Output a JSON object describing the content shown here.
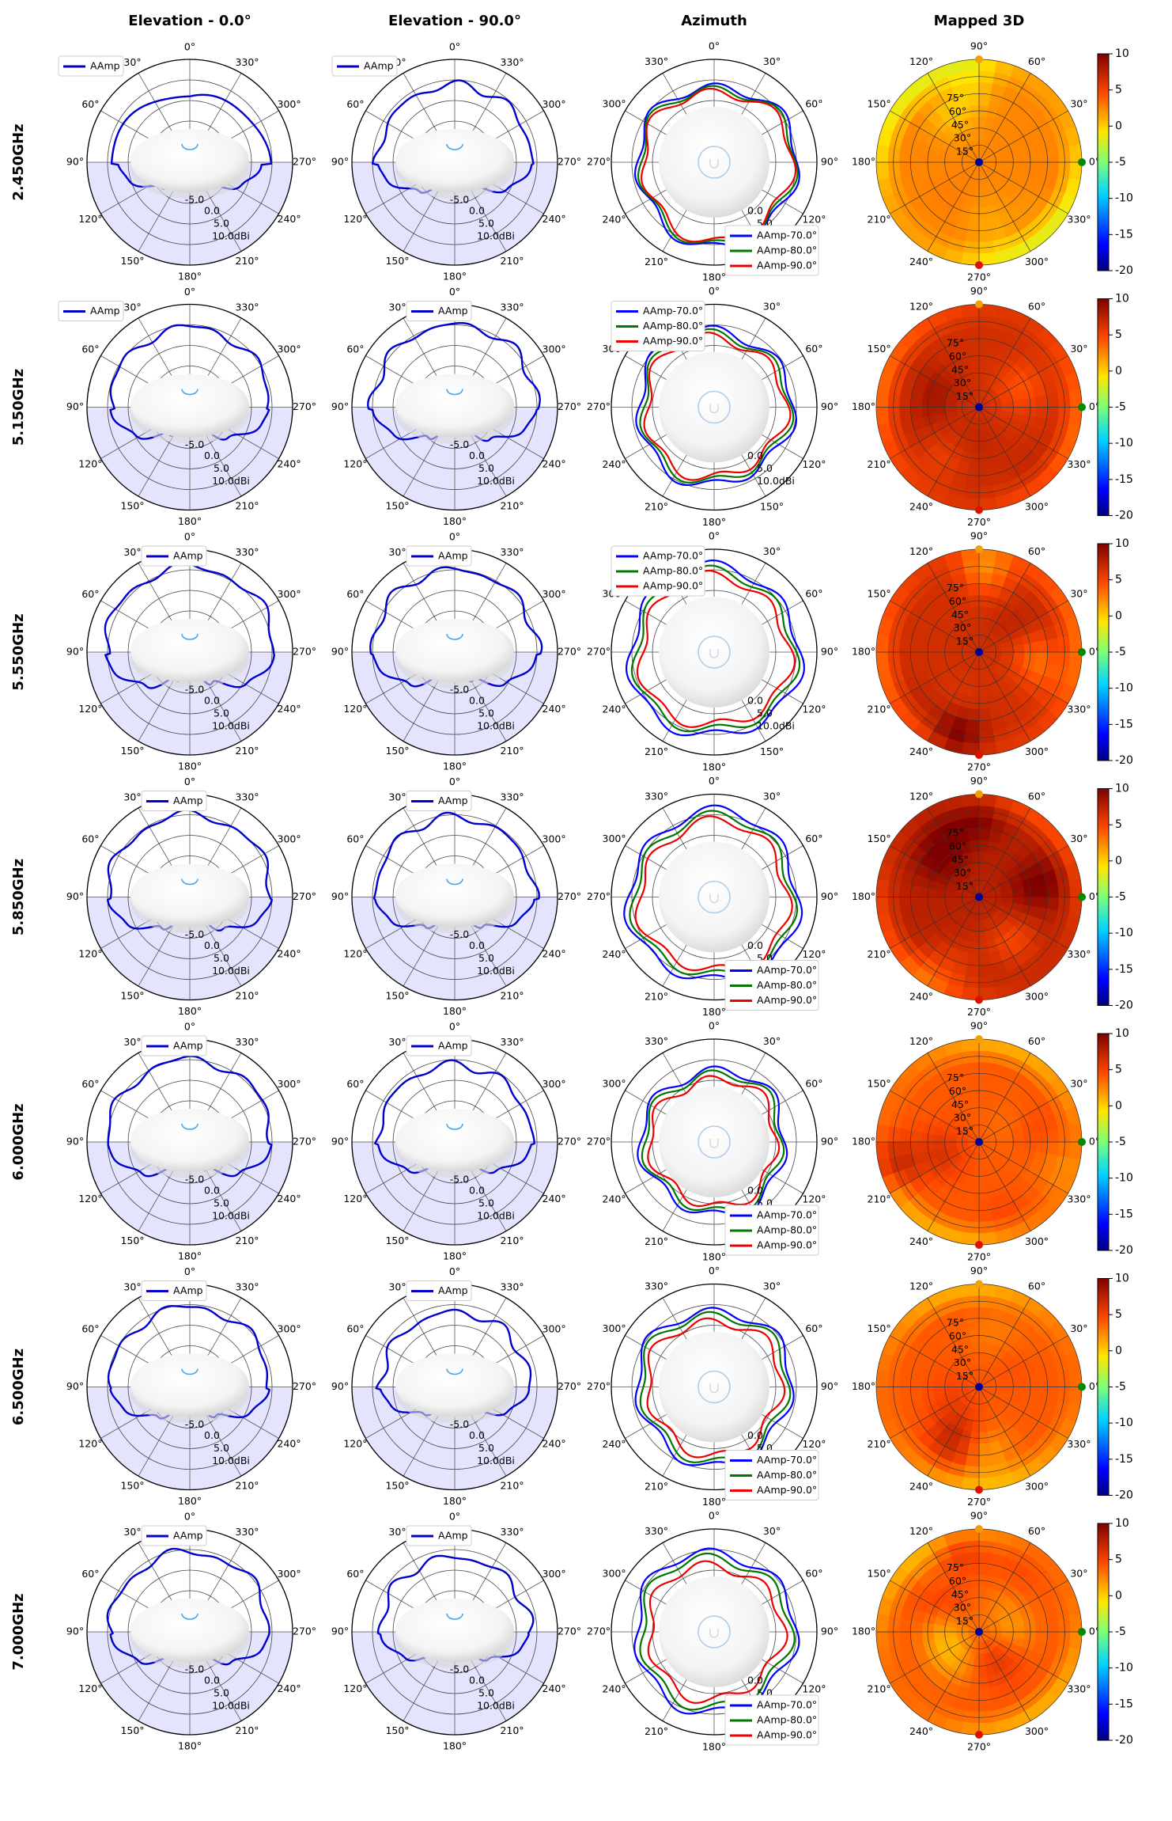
{
  "columns": [
    "Elevation - 0.0°",
    "Elevation - 90.0°",
    "Azimuth",
    "Mapped 3D"
  ],
  "rows": [
    "2.450GHz",
    "5.150GHz",
    "5.550GHz",
    "5.850GHz",
    "6.000GHz",
    "6.500GHz",
    "7.000GHz"
  ],
  "elevation_angle_labels_0": [
    "0°",
    "330°",
    "300°",
    "270°",
    "240°",
    "210°",
    "180°",
    "150°",
    "120°",
    "90°",
    "60°",
    "30°"
  ],
  "elevation_angle_labels_90": [
    "0°",
    "330°",
    "300°",
    "270°",
    "240°",
    "210°",
    "180°",
    "150°",
    "120°",
    "90°",
    "60°",
    "30°"
  ],
  "azimuth_angle_labels": [
    "0°",
    "30°",
    "60°",
    "90°",
    "120°",
    "150°",
    "180°",
    "210°",
    "240°",
    "270°",
    "300°",
    "330°"
  ],
  "mapped_angle_labels": [
    "0°",
    "30°",
    "60°",
    "90°",
    "120°",
    "150°",
    "180°",
    "210°",
    "240°",
    "270°",
    "300°",
    "330°"
  ],
  "mapped_theta_labels": [
    "15°",
    "30°",
    "45°",
    "60°",
    "75°"
  ],
  "radial_labels": [
    "-5.0",
    "0.0",
    "5.0",
    "10.0dBi"
  ],
  "colorbar_ticks": [
    "10",
    "5",
    "0",
    "-5",
    "-10",
    "-15",
    "-20"
  ],
  "colors": {
    "aamp": "#0000cc",
    "az70": "#0000ff",
    "az80": "#007700",
    "az90": "#ee0000",
    "shade": "#e4e4ff",
    "marker_top": "#f0a000",
    "marker_bottom": "#dd1100",
    "marker_right": "#008800",
    "marker_center": "#000099"
  },
  "chart_data": [
    {
      "type": "polar-elevation",
      "plane": "Elevation 0.0°",
      "legend": [
        "AAmp"
      ],
      "radial_range_dBi": [
        -10,
        10
      ],
      "radial_ticks": [
        "-5.0",
        "0.0",
        "5.0",
        "10.0dBi"
      ],
      "series": [
        {
          "name": "AAmp",
          "frequency": "2.450GHz",
          "base_gain_dBi": 4.0
        },
        {
          "name": "AAmp",
          "frequency": "5.150GHz",
          "base_gain_dBi": 5.5
        },
        {
          "name": "AAmp",
          "frequency": "5.550GHz",
          "base_gain_dBi": 6.5
        },
        {
          "name": "AAmp",
          "frequency": "5.850GHz",
          "base_gain_dBi": 6.0
        },
        {
          "name": "AAmp",
          "frequency": "6.000GHz",
          "base_gain_dBi": 6.0
        },
        {
          "name": "AAmp",
          "frequency": "6.500GHz",
          "base_gain_dBi": 5.5
        },
        {
          "name": "AAmp",
          "frequency": "7.000GHz",
          "base_gain_dBi": 5.5
        }
      ]
    },
    {
      "type": "polar-elevation",
      "plane": "Elevation 90.0°",
      "legend": [
        "AAmp"
      ],
      "radial_range_dBi": [
        -10,
        10
      ],
      "radial_ticks": [
        "-5.0",
        "0.0",
        "5.0",
        "10.0dBi"
      ],
      "series": [
        {
          "name": "AAmp",
          "frequency": "2.450GHz",
          "base_gain_dBi": 5.0
        },
        {
          "name": "AAmp",
          "frequency": "5.150GHz",
          "base_gain_dBi": 6.0
        },
        {
          "name": "AAmp",
          "frequency": "5.550GHz",
          "base_gain_dBi": 6.0
        },
        {
          "name": "AAmp",
          "frequency": "5.850GHz",
          "base_gain_dBi": 5.5
        },
        {
          "name": "AAmp",
          "frequency": "6.000GHz",
          "base_gain_dBi": 5.0
        },
        {
          "name": "AAmp",
          "frequency": "6.500GHz",
          "base_gain_dBi": 4.5
        },
        {
          "name": "AAmp",
          "frequency": "7.000GHz",
          "base_gain_dBi": 4.5
        }
      ]
    },
    {
      "type": "polar-azimuth",
      "legend": [
        "AAmp-70.0°",
        "AAmp-80.0°",
        "AAmp-90.0°"
      ],
      "radial_range_dBi": [
        -10,
        10
      ],
      "radial_ticks": [
        "0.0",
        "5.0",
        "10.0dBi"
      ],
      "series": [
        {
          "frequency": "2.450GHz",
          "AAmp-70.0°": 5.5,
          "AAmp-80.0°": 5.0,
          "AAmp-90.0°": 4.5
        },
        {
          "frequency": "5.150GHz",
          "AAmp-70.0°": 5.0,
          "AAmp-80.0°": 4.3,
          "AAmp-90.0°": 3.6
        },
        {
          "frequency": "5.550GHz",
          "AAmp-70.0°": 6.5,
          "AAmp-80.0°": 5.5,
          "AAmp-90.0°": 4.5
        },
        {
          "frequency": "5.850GHz",
          "AAmp-70.0°": 6.5,
          "AAmp-80.0°": 5.5,
          "AAmp-90.0°": 4.5
        },
        {
          "frequency": "6.000GHz",
          "AAmp-70.0°": 4.0,
          "AAmp-80.0°": 3.3,
          "AAmp-90.0°": 2.3
        },
        {
          "frequency": "6.500GHz",
          "AAmp-70.0°": 5.0,
          "AAmp-80.0°": 4.2,
          "AAmp-90.0°": 3.0
        },
        {
          "frequency": "7.000GHz",
          "AAmp-70.0°": 5.5,
          "AAmp-80.0°": 4.5,
          "AAmp-90.0°": 3.0
        }
      ]
    },
    {
      "type": "heatmap-polar",
      "title": "Mapped 3D",
      "colorbar_range_dBi": [
        -20,
        10
      ],
      "colorbar_ticks": [
        10,
        5,
        0,
        -5,
        -10,
        -15,
        -20
      ],
      "theta_rings_deg": [
        15,
        30,
        45,
        60,
        75,
        90
      ],
      "frequencies": [
        "2.450GHz",
        "5.150GHz",
        "5.550GHz",
        "5.850GHz",
        "6.000GHz",
        "6.500GHz",
        "7.000GHz"
      ],
      "typical_level_dBi": [
        2.5,
        6.5,
        6.5,
        7.5,
        4.0,
        4.0,
        4.0
      ]
    }
  ]
}
